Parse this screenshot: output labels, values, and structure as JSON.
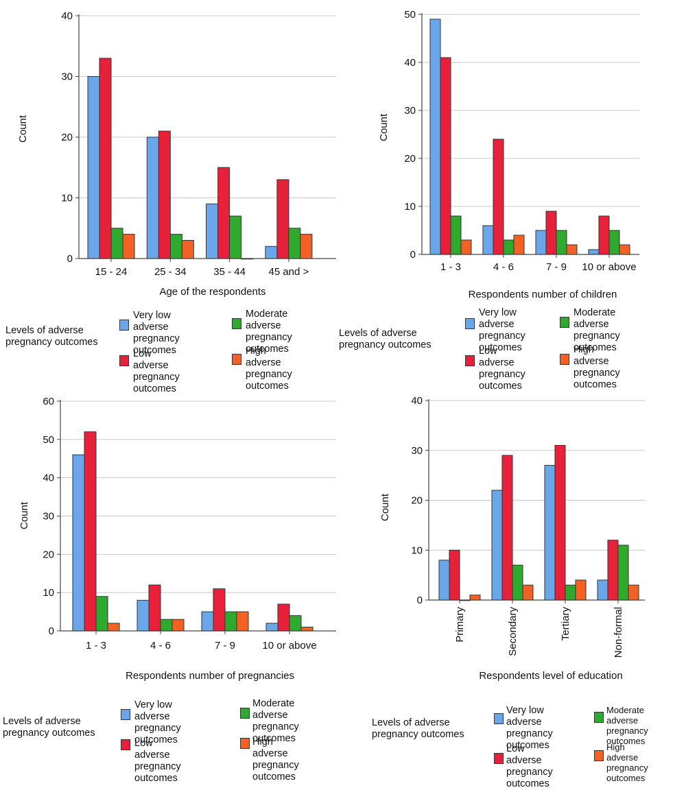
{
  "colors": {
    "very_low": "#6aa6ea",
    "low": "#e8213a",
    "moderate": "#2eaa2e",
    "high": "#f46125"
  },
  "chart_data": [
    {
      "type": "bar",
      "xlabel": "Age of the respondents",
      "ylabel": "Count",
      "ylim": [
        0,
        40
      ],
      "yticks": [
        "0",
        "10",
        "20",
        "30",
        "40"
      ],
      "categories": [
        "15 - 24",
        "25 - 34",
        "35 - 44",
        "45 and >"
      ],
      "series": [
        {
          "name": "Very low adverse pregnancy outcomes",
          "values": [
            30,
            20,
            9,
            2
          ]
        },
        {
          "name": "Low adverse pregnancy outcomes",
          "values": [
            33,
            21,
            15,
            13
          ]
        },
        {
          "name": "Moderate adverse pregnancy outcomes",
          "values": [
            5,
            4,
            7,
            5
          ]
        },
        {
          "name": "High adverse pregnancy outcomes",
          "values": [
            4,
            3,
            0,
            4
          ]
        }
      ],
      "legend_title": "Levels of adverse pregnancy outcomes",
      "grid": true
    },
    {
      "type": "bar",
      "xlabel": "Respondents number of children",
      "ylabel": "Count",
      "ylim": [
        0,
        50
      ],
      "yticks": [
        "0",
        "10",
        "20",
        "30",
        "40",
        "50"
      ],
      "categories": [
        "1 - 3",
        "4 - 6",
        "7 - 9",
        "10 or above"
      ],
      "series": [
        {
          "name": "Very low adverse pregnancy outcomes",
          "values": [
            49,
            6,
            5,
            1
          ]
        },
        {
          "name": "Low adverse pregnancy outcomes",
          "values": [
            41,
            24,
            9,
            8
          ]
        },
        {
          "name": "Moderate adverse pregnancy outcomes",
          "values": [
            8,
            3,
            5,
            5
          ]
        },
        {
          "name": "High adverse pregnancy outcomes",
          "values": [
            3,
            4,
            2,
            2
          ]
        }
      ],
      "legend_title": "Levels of adverse pregnancy outcomes",
      "grid": true
    },
    {
      "type": "bar",
      "xlabel": "Respondents number of pregnancies",
      "ylabel": "Count",
      "ylim": [
        0,
        60
      ],
      "yticks": [
        "0",
        "10",
        "20",
        "30",
        "40",
        "50",
        "60"
      ],
      "categories": [
        "1 - 3",
        "4 - 6",
        "7 - 9",
        "10 or above"
      ],
      "series": [
        {
          "name": "Very low adverse pregnancy outcomes",
          "values": [
            46,
            8,
            5,
            2
          ]
        },
        {
          "name": "Low adverse pregnancy outcomes",
          "values": [
            52,
            12,
            11,
            7
          ]
        },
        {
          "name": "Moderate adverse pregnancy outcomes",
          "values": [
            9,
            3,
            5,
            4
          ]
        },
        {
          "name": "High adverse pregnancy outcomes",
          "values": [
            2,
            3,
            5,
            1
          ]
        }
      ],
      "legend_title": "Levels of adverse pregnancy outcomes",
      "grid": true
    },
    {
      "type": "bar",
      "xlabel": "Respondents level of education",
      "ylabel": "Count",
      "ylim": [
        0,
        40
      ],
      "yticks": [
        "0",
        "10",
        "20",
        "30",
        "40"
      ],
      "categories": [
        "Primary",
        "Secondary",
        "Tertiary",
        "Non-formal"
      ],
      "series": [
        {
          "name": "Very low adverse pregnancy outcomes",
          "values": [
            8,
            22,
            27,
            4
          ]
        },
        {
          "name": "Low adverse pregnancy outcomes",
          "values": [
            10,
            29,
            31,
            12
          ]
        },
        {
          "name": "Moderate adverse pregnancy outcomes",
          "values": [
            0,
            7,
            3,
            11
          ]
        },
        {
          "name": "High adverse pregnancy outcomes",
          "values": [
            1,
            3,
            4,
            3
          ]
        }
      ],
      "legend_title": "Levels of adverse pregnancy outcomes",
      "grid": true
    }
  ],
  "legend": {
    "title": "Levels of adverse\npregnancy outcomes",
    "items": [
      {
        "label": "Very low adverse\npregnancy\noutcomes",
        "color_key": "very_low"
      },
      {
        "label": "Low adverse\npregnancy\noutcomes",
        "color_key": "low"
      },
      {
        "label": "Moderate adverse\npregnancy\noutcomes",
        "color_key": "moderate"
      },
      {
        "label": "High adverse\npregnancy\noutcomes",
        "color_key": "high"
      }
    ]
  }
}
